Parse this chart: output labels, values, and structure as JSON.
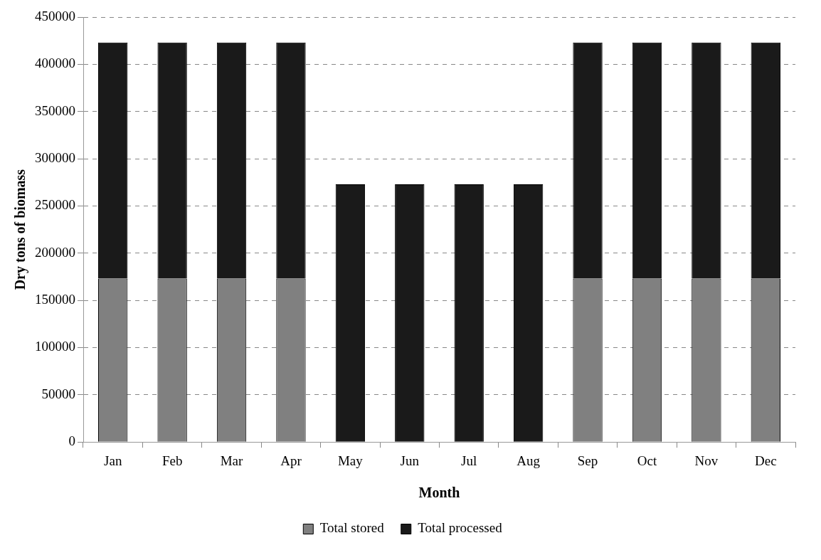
{
  "chart_data": {
    "type": "bar",
    "stacked": true,
    "xlabel": "Month",
    "ylabel": "Dry tons of biomass",
    "categories": [
      "Jan",
      "Feb",
      "Mar",
      "Apr",
      "May",
      "Jun",
      "Jul",
      "Aug",
      "Sep",
      "Oct",
      "Nov",
      "Dec"
    ],
    "series": [
      {
        "name": "Total stored",
        "color": "#808080",
        "values": [
          173000,
          173000,
          173000,
          173000,
          0,
          0,
          0,
          0,
          173000,
          173000,
          173000,
          173000
        ]
      },
      {
        "name": "Total processed",
        "color": "#1a1a1a",
        "values": [
          250000,
          250000,
          250000,
          250000,
          273000,
          273000,
          273000,
          273000,
          250000,
          250000,
          250000,
          250000
        ]
      }
    ],
    "ylim": [
      0,
      450000
    ],
    "yticks": [
      0,
      50000,
      100000,
      150000,
      200000,
      250000,
      300000,
      350000,
      400000,
      450000
    ],
    "grid": "y",
    "legend": "bottom"
  }
}
